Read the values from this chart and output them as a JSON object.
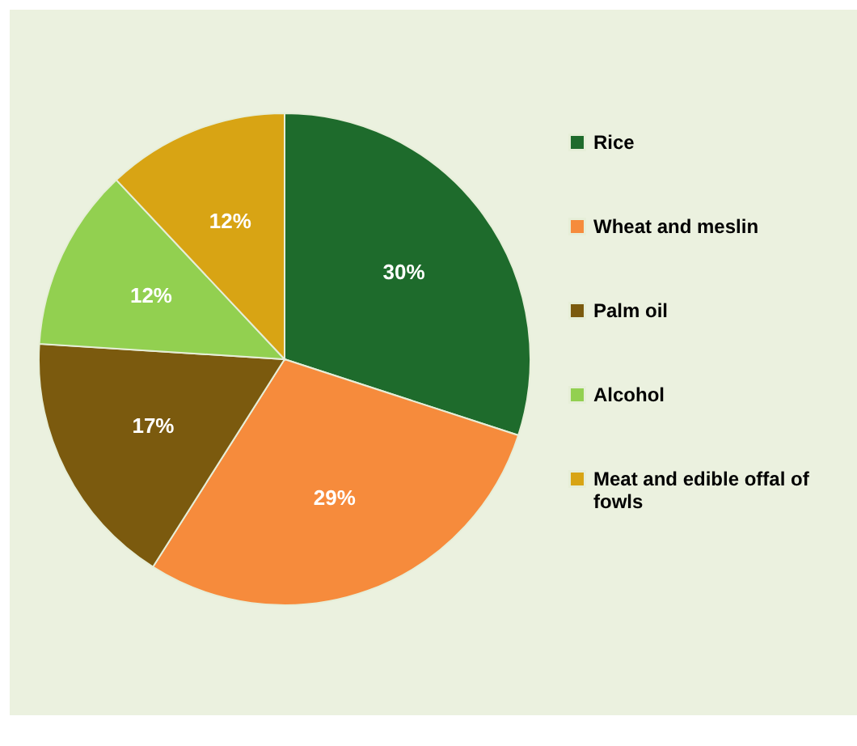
{
  "chart_data": {
    "type": "pie",
    "categories": [
      "Rice",
      "Wheat and meslin",
      "Palm oil",
      "Alcohol",
      "Meat and edible offal of fowls"
    ],
    "values": [
      30,
      29,
      17,
      12,
      12
    ],
    "value_labels": [
      "30%",
      "29%",
      "17%",
      "12%",
      "12%"
    ],
    "colors": [
      "#1e6b2c",
      "#f68b3c",
      "#7b5a0e",
      "#92d050",
      "#d8a414"
    ],
    "legend": "right"
  }
}
